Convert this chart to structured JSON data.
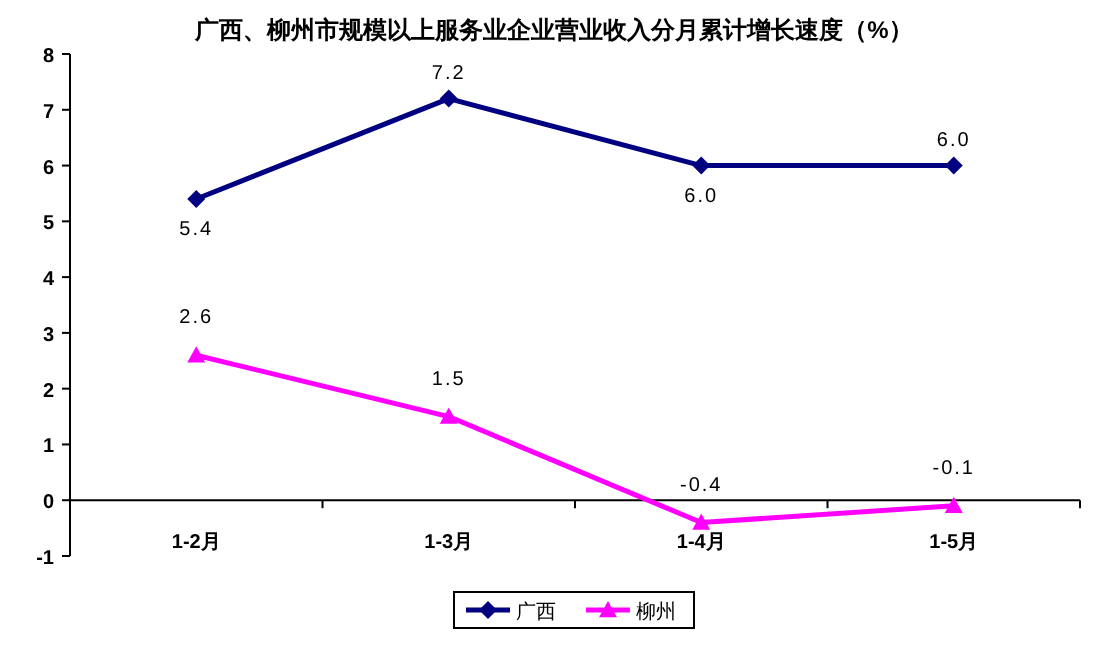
{
  "chart_data": {
    "type": "line",
    "title": "广西、柳州市规模以上服务业企业营业收入分月累计增长速度（%）",
    "categories": [
      "1-2月",
      "1-3月",
      "1-4月",
      "1-5月"
    ],
    "series": [
      {
        "name": "广西",
        "color": "#000080",
        "values": [
          5.4,
          7.2,
          6.0,
          6.0
        ],
        "value_labels": [
          "5.4",
          "7.2",
          "6.0",
          "6.0"
        ],
        "marker": "diamond"
      },
      {
        "name": "柳州",
        "color": "#ff00ff",
        "values": [
          2.6,
          1.5,
          -0.4,
          -0.1
        ],
        "value_labels": [
          "2.6",
          "1.5",
          "-0.4",
          "-0.1"
        ],
        "marker": "triangle"
      }
    ],
    "ylim": [
      -1,
      8
    ],
    "yticks": [
      -1,
      0,
      1,
      2,
      3,
      4,
      5,
      6,
      7,
      8
    ],
    "legend": "bottom",
    "grid": false
  }
}
